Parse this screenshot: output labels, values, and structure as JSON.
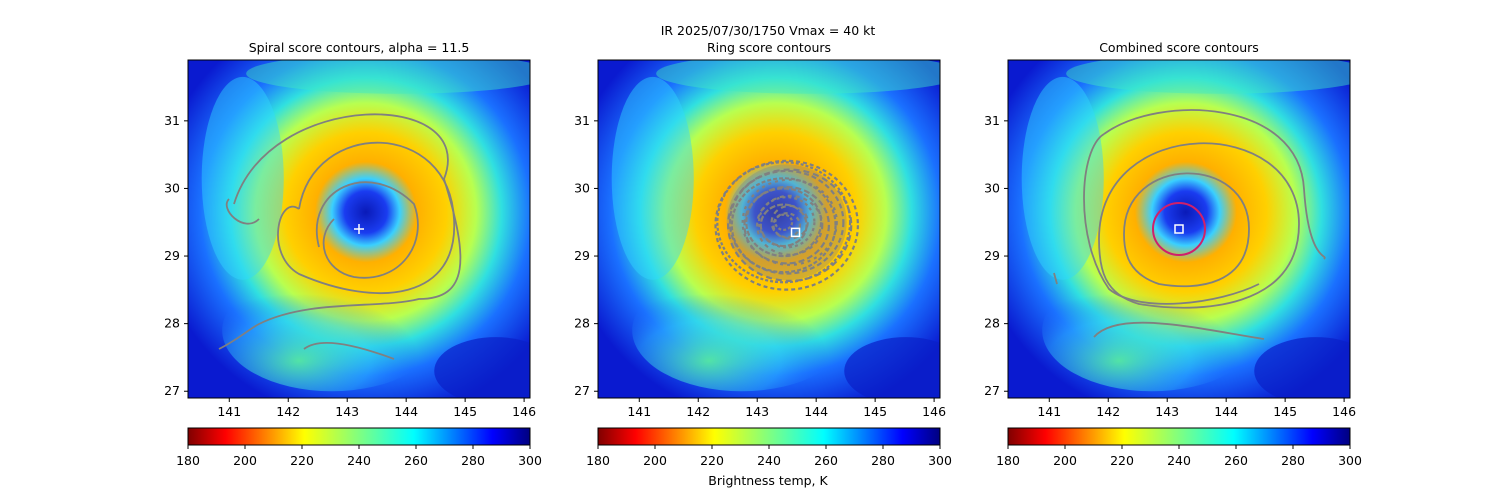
{
  "figure": {
    "suptitle_line1": "IR  2025/07/30/1750    Vmax = 40 kt",
    "colorbar_label": "Brightness temp, K"
  },
  "colors": {
    "contour": "#808080",
    "combined_ring": "#d0206a",
    "marker": "#ffffff"
  },
  "chart_data": [
    {
      "type": "heatmap",
      "title": "Spiral score contours, alpha = 11.5",
      "colormap": "jet_r",
      "xlim": [
        140.3,
        146.1
      ],
      "ylim": [
        26.9,
        31.9
      ],
      "xticks": [
        "141",
        "142",
        "143",
        "144",
        "145",
        "146"
      ],
      "yticks": [
        "27",
        "28",
        "29",
        "30",
        "31"
      ],
      "colorbar_ticks": [
        "180",
        "200",
        "220",
        "240",
        "260",
        "280",
        "300"
      ],
      "colorbar_range": [
        180,
        300
      ],
      "center_marker": {
        "shape": "plus",
        "lon": 143.2,
        "lat": 29.4
      },
      "contours": "spiral"
    },
    {
      "type": "heatmap",
      "title": "Ring score contours",
      "colormap": "jet_r",
      "xlim": [
        140.3,
        146.1
      ],
      "ylim": [
        26.9,
        31.9
      ],
      "xticks": [
        "141",
        "142",
        "143",
        "144",
        "145",
        "146"
      ],
      "yticks": [
        "27",
        "28",
        "29",
        "30",
        "31"
      ],
      "colorbar_ticks": [
        "180",
        "200",
        "220",
        "240",
        "260",
        "280",
        "300"
      ],
      "colorbar_range": [
        180,
        300
      ],
      "center_marker": {
        "shape": "square",
        "lon": 143.65,
        "lat": 29.35
      },
      "contours": "ring"
    },
    {
      "type": "heatmap",
      "title": "Combined score contours",
      "colormap": "jet_r",
      "xlim": [
        140.3,
        146.1
      ],
      "ylim": [
        26.9,
        31.9
      ],
      "xticks": [
        "141",
        "142",
        "143",
        "144",
        "145",
        "146"
      ],
      "yticks": [
        "27",
        "28",
        "29",
        "30",
        "31"
      ],
      "colorbar_ticks": [
        "180",
        "200",
        "220",
        "240",
        "260",
        "280",
        "300"
      ],
      "colorbar_range": [
        180,
        300
      ],
      "center_marker": {
        "shape": "square",
        "lon": 143.2,
        "lat": 29.4
      },
      "contours": "combined"
    }
  ]
}
